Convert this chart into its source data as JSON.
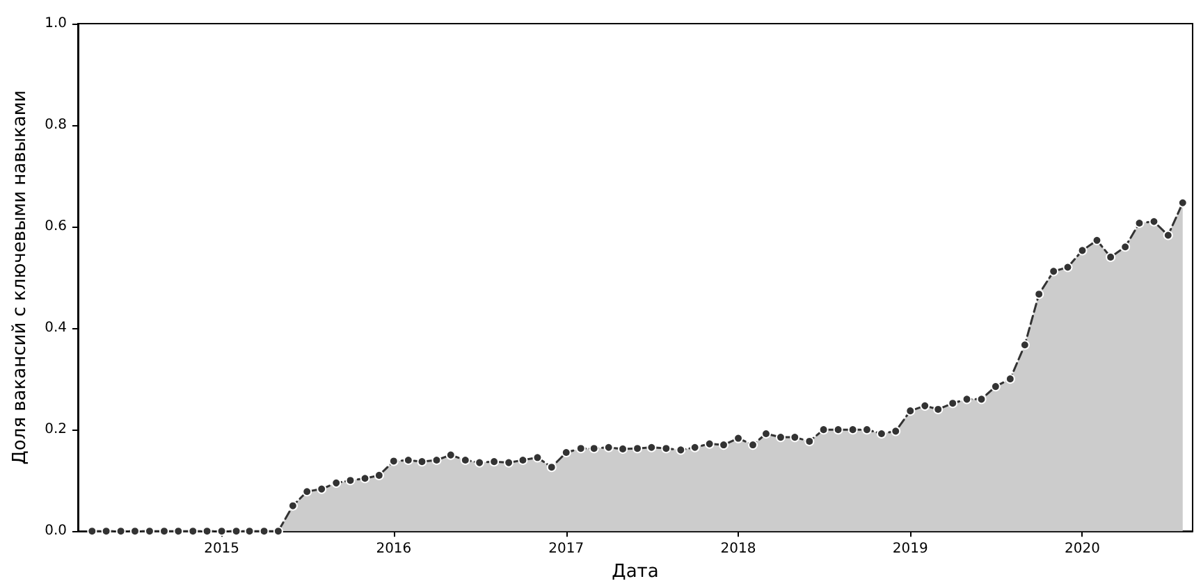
{
  "chart_data": {
    "type": "area",
    "xlabel": "Дата",
    "ylabel": "Доля вакансий с ключевыми навыками",
    "x": [
      "2014-04",
      "2014-05",
      "2014-06",
      "2014-07",
      "2014-08",
      "2014-09",
      "2014-10",
      "2014-11",
      "2014-12",
      "2015-01",
      "2015-02",
      "2015-03",
      "2015-04",
      "2015-05",
      "2015-06",
      "2015-07",
      "2015-08",
      "2015-09",
      "2015-10",
      "2015-11",
      "2015-12",
      "2016-01",
      "2016-02",
      "2016-03",
      "2016-04",
      "2016-05",
      "2016-06",
      "2016-07",
      "2016-08",
      "2016-09",
      "2016-10",
      "2016-11",
      "2016-12",
      "2017-01",
      "2017-02",
      "2017-03",
      "2017-04",
      "2017-05",
      "2017-06",
      "2017-07",
      "2017-08",
      "2017-09",
      "2017-10",
      "2017-11",
      "2017-12",
      "2018-01",
      "2018-02",
      "2018-03",
      "2018-04",
      "2018-05",
      "2018-06",
      "2018-07",
      "2018-08",
      "2018-09",
      "2018-10",
      "2018-11",
      "2018-12",
      "2019-01",
      "2019-02",
      "2019-03",
      "2019-04",
      "2019-05",
      "2019-06",
      "2019-07",
      "2019-08",
      "2019-09",
      "2019-10",
      "2019-11",
      "2019-12",
      "2020-01",
      "2020-02",
      "2020-03",
      "2020-04",
      "2020-05",
      "2020-06",
      "2020-07",
      "2020-08"
    ],
    "series": [
      {
        "color": "#333333",
        "values": [
          0,
          0,
          0,
          0,
          0,
          0,
          0,
          0,
          0,
          0,
          0,
          0,
          0,
          0,
          0.05,
          0.078,
          0.083,
          0.095,
          0.1,
          0.104,
          0.11,
          0.138,
          0.14,
          0.137,
          0.14,
          0.15,
          0.14,
          0.135,
          0.137,
          0.135,
          0.14,
          0.145,
          0.126,
          0.155,
          0.163,
          0.163,
          0.165,
          0.162,
          0.163,
          0.165,
          0.163,
          0.16,
          0.165,
          0.172,
          0.17,
          0.183,
          0.17,
          0.192,
          0.185,
          0.185,
          0.177,
          0.2,
          0.2,
          0.2,
          0.2,
          0.192,
          0.197,
          0.237,
          0.247,
          0.24,
          0.252,
          0.26,
          0.26,
          0.285,
          0.3,
          0.367,
          0.467,
          0.512,
          0.52,
          0.553,
          0.573,
          0.54,
          0.56,
          0.607,
          0.61,
          0.583,
          0.647
        ]
      }
    ],
    "xlim": [
      "2014-03-02",
      "2020-08-22"
    ],
    "xticks": [
      {
        "value": "2015",
        "label": "2015"
      },
      {
        "value": "2016",
        "label": "2016"
      },
      {
        "value": "2017",
        "label": "2017"
      },
      {
        "value": "2018",
        "label": "2018"
      },
      {
        "value": "2019",
        "label": "2019"
      },
      {
        "value": "2020",
        "label": "2020"
      }
    ],
    "ylim": [
      0,
      1
    ],
    "yticks": [
      {
        "value": 0,
        "label": "0.0"
      },
      {
        "value": 0.2,
        "label": "0.2"
      },
      {
        "value": 0.4,
        "label": "0.4"
      },
      {
        "value": 0.6,
        "label": "0.6"
      },
      {
        "value": 0.8,
        "label": "0.8"
      },
      {
        "value": 1,
        "label": "1.0"
      }
    ],
    "grid": false,
    "marker": "circle",
    "line_style": "dashed"
  }
}
